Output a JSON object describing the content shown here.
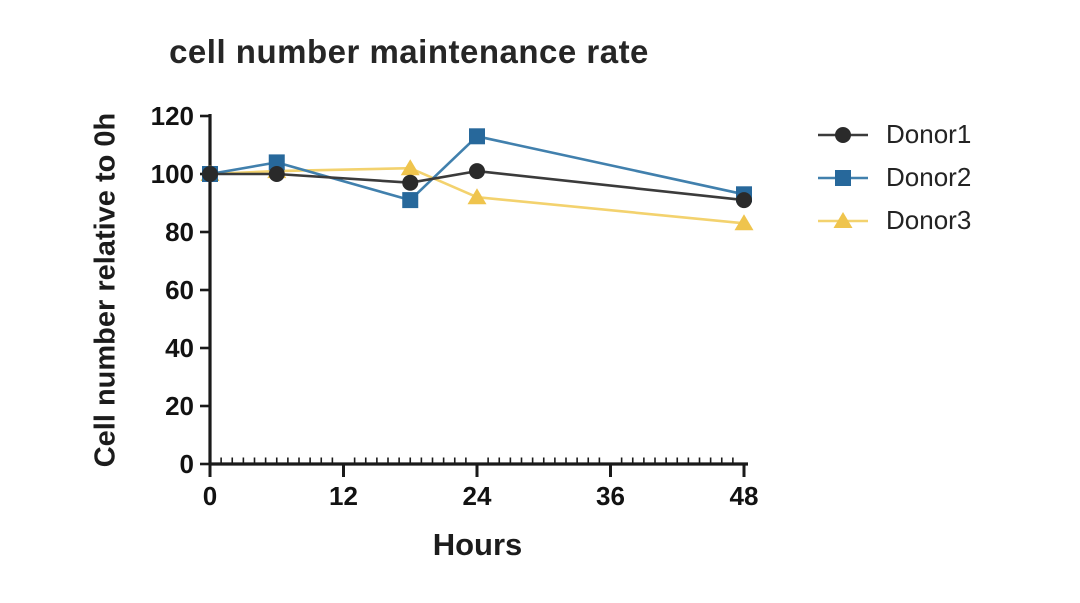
{
  "chart_data": {
    "type": "line",
    "title": "cell number maintenance rate",
    "xlabel": "Hours",
    "ylabel": "Cell number relative to 0h",
    "x": [
      0,
      6,
      18,
      24,
      48
    ],
    "series": [
      {
        "name": "Donor1",
        "marker": "circle",
        "marker_color": "#2a2a2a",
        "line_color": "#3b3b3b",
        "values": [
          100,
          100,
          97,
          101,
          91
        ]
      },
      {
        "name": "Donor2",
        "marker": "square",
        "marker_color": "#27689b",
        "line_color": "#4180ad",
        "values": [
          100,
          104,
          91,
          113,
          93
        ]
      },
      {
        "name": "Donor3",
        "marker": "triangle",
        "marker_color": "#efc44d",
        "line_color": "#f3d26e",
        "values": [
          100,
          101,
          102,
          92,
          83
        ]
      }
    ],
    "xlim": [
      0,
      48
    ],
    "ylim": [
      0,
      120
    ],
    "xticks": [
      0,
      12,
      24,
      36,
      48
    ],
    "yticks": [
      0,
      20,
      40,
      60,
      80,
      100,
      120
    ],
    "x_minor_tick_step": 1,
    "grid": false,
    "legend_position": "right",
    "axis_color": "#1a1a1a",
    "background_color": "#ffffff"
  }
}
